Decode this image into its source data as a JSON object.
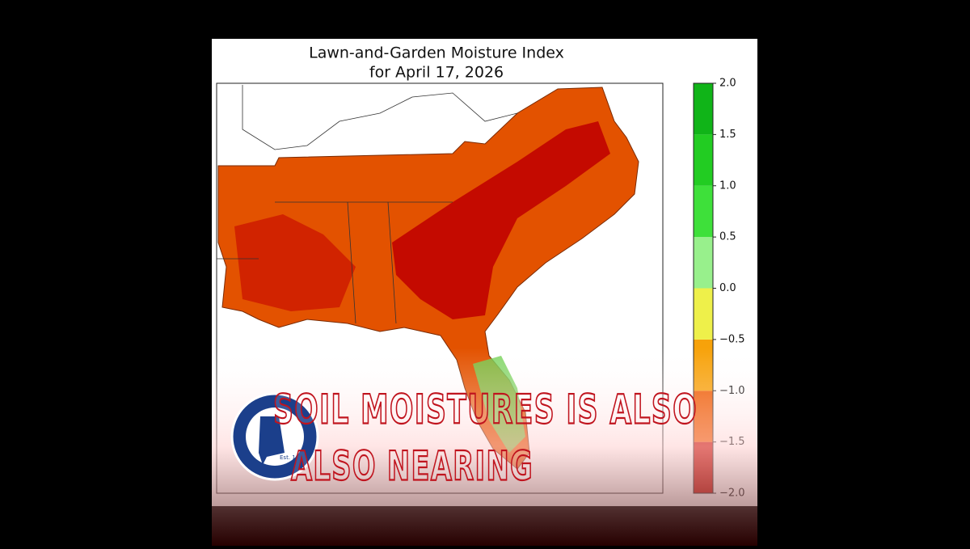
{
  "map": {
    "title": [
      "Lawn-and-Garden Moisture Index",
      "for April 17, 2026"
    ],
    "colorbar": {
      "ticks": [
        {
          "value": -2.0,
          "label": "−2.0"
        },
        {
          "value": -1.5,
          "label": "−1.5"
        },
        {
          "value": -1.0,
          "label": "−1.0"
        },
        {
          "value": -0.5,
          "label": "−0.5"
        },
        {
          "value": 0.0,
          "label": "0.0"
        },
        {
          "value": 0.5,
          "label": "0.5"
        },
        {
          "value": 1.0,
          "label": "1.0"
        },
        {
          "value": 1.5,
          "label": "1.5"
        },
        {
          "value": 2.0,
          "label": "2.0"
        }
      ],
      "colors": [
        "#c40a00",
        "#ee5a00",
        "#f7a20a",
        "#eef04a",
        "#98f08c",
        "#3ee03a",
        "#22cc22",
        "#10b418"
      ]
    }
  },
  "caption": {
    "lines": [
      "SOIL MOISTURES IS ALSO",
      "ALSO NEARING"
    ]
  },
  "logo": {
    "text": "Est. 1978"
  }
}
